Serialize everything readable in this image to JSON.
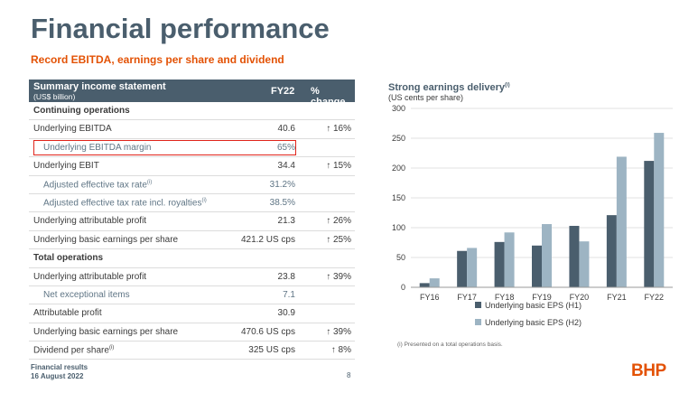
{
  "page": {
    "title": "Financial performance",
    "subtitle": "Record EBITDA, earnings per share and dividend",
    "footer_line1": "Financial results",
    "footer_line2": "16 August 2022",
    "page_number": "8",
    "logo": "BHP"
  },
  "table": {
    "header_title": "Summary income statement",
    "header_subtitle": "(US$ billion)",
    "col_fy": "FY22",
    "col_change": "% change",
    "rows": [
      {
        "label": "Continuing operations",
        "value": "",
        "change": "",
        "type": "section"
      },
      {
        "label": "Underlying EBITDA",
        "value": "40.6",
        "change": "↑ 16%",
        "type": "normal"
      },
      {
        "label": "Underlying EBITDA margin",
        "value": "65%",
        "change": "",
        "type": "indent-highlight"
      },
      {
        "label": "Underlying EBIT",
        "value": "34.4",
        "change": "↑ 15%",
        "type": "normal"
      },
      {
        "label": "Adjusted effective tax rate",
        "sup": "(i)",
        "value": "31.2%",
        "change": "",
        "type": "indent"
      },
      {
        "label": "Adjusted effective tax rate incl. royalties",
        "sup": "(i)",
        "value": "38.5%",
        "change": "",
        "type": "indent"
      },
      {
        "label": "Underlying attributable profit",
        "value": "21.3",
        "change": "↑ 26%",
        "type": "normal"
      },
      {
        "label": "Underlying basic earnings per share",
        "value": "421.2 US cps",
        "change": "↑ 25%",
        "type": "normal"
      },
      {
        "label": "Total operations",
        "value": "",
        "change": "",
        "type": "section"
      },
      {
        "label": "Underlying attributable profit",
        "value": "23.8",
        "change": "↑ 39%",
        "type": "normal"
      },
      {
        "label": "Net exceptional items",
        "value": "7.1",
        "change": "",
        "type": "indent"
      },
      {
        "label": "Attributable profit",
        "value": "30.9",
        "change": "",
        "type": "normal"
      },
      {
        "label": "Underlying basic earnings per share",
        "value": "470.6 US cps",
        "change": "↑ 39%",
        "type": "normal"
      },
      {
        "label": "Dividend per share",
        "sup": "(i)",
        "value": "325 US cps",
        "change": "↑ 8%",
        "type": "normal"
      }
    ]
  },
  "chart_title": "Strong earnings delivery",
  "chart_title_sup": "(i)",
  "chart_subtitle": "(US cents per share)",
  "chart_footnote": "(i) Presented on a total operations basis.",
  "chart_data": {
    "type": "bar",
    "title": "Strong earnings delivery",
    "ylabel": "US cents per share",
    "categories": [
      "FY16",
      "FY17",
      "FY18",
      "FY19",
      "FY20",
      "FY21",
      "FY22"
    ],
    "ylim": [
      0,
      300
    ],
    "yticks": [
      0,
      50,
      100,
      150,
      200,
      250,
      300
    ],
    "legend_position": "bottom",
    "series": [
      {
        "name": "Underlying basic EPS (H1)",
        "color": "#4a5e6d",
        "values": [
          7,
          61,
          76,
          70,
          103,
          121,
          212
        ]
      },
      {
        "name": "Underlying basic EPS (H2)",
        "color": "#9db4c3",
        "values": [
          15,
          66,
          92,
          106,
          77,
          219,
          259
        ]
      }
    ]
  }
}
